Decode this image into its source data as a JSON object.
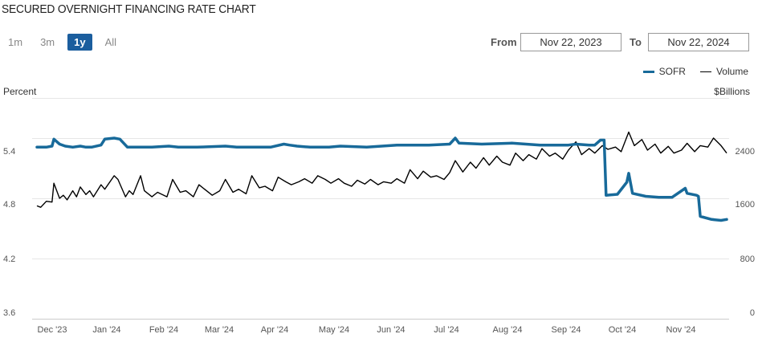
{
  "title": "SECURED OVERNIGHT FINANCING RATE CHART",
  "ranges": [
    {
      "label": "1m",
      "active": false
    },
    {
      "label": "3m",
      "active": false
    },
    {
      "label": "1y",
      "active": true
    },
    {
      "label": "All",
      "active": false
    }
  ],
  "date_range": {
    "from_label": "From",
    "from_value": "Nov 22, 2023",
    "to_label": "To",
    "to_value": "Nov 22, 2024"
  },
  "colors": {
    "sofr": "#186a9a",
    "volume": "#000000",
    "grid": "#e6e6e6"
  },
  "chart_data": {
    "type": "line",
    "x_ticks": [
      "Dec '23",
      "Jan '24",
      "Feb '24",
      "Mar '24",
      "Apr '24",
      "May '24",
      "Jun '24",
      "Jul '24",
      "Aug '24",
      "Sep '24",
      "Oct '24",
      "Nov '24"
    ],
    "y_left": {
      "title": "Percent",
      "ticks": [
        "5.4",
        "4.8",
        "4.2",
        "3.6"
      ],
      "range": [
        3.6,
        5.8
      ]
    },
    "y_right": {
      "title": "$Billions",
      "ticks": [
        "2400",
        "1600",
        "800",
        "0"
      ],
      "range": [
        0,
        2933
      ]
    },
    "legend": {
      "position": "top-right"
    },
    "grid": true,
    "series": [
      {
        "name": "SOFR",
        "axis": "left",
        "points": [
          [
            "2023-11-22",
            5.31
          ],
          [
            "2023-11-27",
            5.31
          ],
          [
            "2023-11-30",
            5.32
          ],
          [
            "2023-12-01",
            5.39
          ],
          [
            "2023-12-04",
            5.34
          ],
          [
            "2023-12-07",
            5.32
          ],
          [
            "2023-12-11",
            5.31
          ],
          [
            "2023-12-15",
            5.32
          ],
          [
            "2023-12-18",
            5.31
          ],
          [
            "2023-12-21",
            5.31
          ],
          [
            "2023-12-26",
            5.33
          ],
          [
            "2023-12-28",
            5.39
          ],
          [
            "2024-01-02",
            5.4
          ],
          [
            "2024-01-05",
            5.39
          ],
          [
            "2024-01-09",
            5.31
          ],
          [
            "2024-01-15",
            5.31
          ],
          [
            "2024-01-22",
            5.31
          ],
          [
            "2024-01-31",
            5.32
          ],
          [
            "2024-02-05",
            5.31
          ],
          [
            "2024-02-15",
            5.31
          ],
          [
            "2024-03-01",
            5.32
          ],
          [
            "2024-03-07",
            5.31
          ],
          [
            "2024-03-15",
            5.31
          ],
          [
            "2024-03-25",
            5.31
          ],
          [
            "2024-04-01",
            5.34
          ],
          [
            "2024-04-04",
            5.33
          ],
          [
            "2024-04-08",
            5.32
          ],
          [
            "2024-04-15",
            5.31
          ],
          [
            "2024-04-25",
            5.31
          ],
          [
            "2024-05-01",
            5.32
          ],
          [
            "2024-05-15",
            5.31
          ],
          [
            "2024-05-31",
            5.33
          ],
          [
            "2024-06-05",
            5.33
          ],
          [
            "2024-06-17",
            5.33
          ],
          [
            "2024-06-28",
            5.34
          ],
          [
            "2024-07-01",
            5.4
          ],
          [
            "2024-07-03",
            5.35
          ],
          [
            "2024-07-15",
            5.34
          ],
          [
            "2024-07-31",
            5.35
          ],
          [
            "2024-08-15",
            5.33
          ],
          [
            "2024-08-30",
            5.33
          ],
          [
            "2024-09-03",
            5.34
          ],
          [
            "2024-09-10",
            5.33
          ],
          [
            "2024-09-13",
            5.33
          ],
          [
            "2024-09-16",
            5.38
          ],
          [
            "2024-09-18",
            5.38
          ],
          [
            "2024-09-19",
            4.83
          ],
          [
            "2024-09-25",
            4.84
          ],
          [
            "2024-09-30",
            4.96
          ],
          [
            "2024-10-01",
            5.05
          ],
          [
            "2024-10-03",
            4.85
          ],
          [
            "2024-10-10",
            4.82
          ],
          [
            "2024-10-17",
            4.81
          ],
          [
            "2024-10-24",
            4.81
          ],
          [
            "2024-10-31",
            4.9
          ],
          [
            "2024-11-01",
            4.85
          ],
          [
            "2024-11-06",
            4.83
          ],
          [
            "2024-11-07",
            4.82
          ],
          [
            "2024-11-08",
            4.62
          ],
          [
            "2024-11-14",
            4.59
          ],
          [
            "2024-11-19",
            4.58
          ],
          [
            "2024-11-22",
            4.59
          ]
        ]
      },
      {
        "name": "Volume",
        "axis": "right",
        "points": [
          [
            "2023-11-22",
            1500
          ],
          [
            "2023-11-24",
            1480
          ],
          [
            "2023-11-27",
            1560
          ],
          [
            "2023-11-30",
            1550
          ],
          [
            "2023-12-01",
            1800
          ],
          [
            "2023-12-04",
            1600
          ],
          [
            "2023-12-06",
            1640
          ],
          [
            "2023-12-08",
            1580
          ],
          [
            "2023-12-11",
            1700
          ],
          [
            "2023-12-13",
            1620
          ],
          [
            "2023-12-15",
            1750
          ],
          [
            "2023-12-18",
            1650
          ],
          [
            "2023-12-20",
            1700
          ],
          [
            "2023-12-22",
            1620
          ],
          [
            "2023-12-26",
            1780
          ],
          [
            "2023-12-28",
            1720
          ],
          [
            "2024-01-02",
            1900
          ],
          [
            "2024-01-04",
            1850
          ],
          [
            "2024-01-08",
            1620
          ],
          [
            "2024-01-10",
            1700
          ],
          [
            "2024-01-12",
            1650
          ],
          [
            "2024-01-16",
            1900
          ],
          [
            "2024-01-18",
            1700
          ],
          [
            "2024-01-22",
            1620
          ],
          [
            "2024-01-25",
            1680
          ],
          [
            "2024-01-30",
            1620
          ],
          [
            "2024-02-02",
            1850
          ],
          [
            "2024-02-06",
            1680
          ],
          [
            "2024-02-09",
            1700
          ],
          [
            "2024-02-13",
            1620
          ],
          [
            "2024-02-16",
            1780
          ],
          [
            "2024-02-20",
            1700
          ],
          [
            "2024-02-23",
            1640
          ],
          [
            "2024-02-27",
            1700
          ],
          [
            "2024-03-01",
            1850
          ],
          [
            "2024-03-05",
            1680
          ],
          [
            "2024-03-08",
            1720
          ],
          [
            "2024-03-12",
            1660
          ],
          [
            "2024-03-15",
            1900
          ],
          [
            "2024-03-19",
            1740
          ],
          [
            "2024-03-22",
            1760
          ],
          [
            "2024-03-26",
            1700
          ],
          [
            "2024-03-29",
            1880
          ],
          [
            "2024-04-02",
            1820
          ],
          [
            "2024-04-05",
            1780
          ],
          [
            "2024-04-09",
            1820
          ],
          [
            "2024-04-12",
            1860
          ],
          [
            "2024-04-16",
            1800
          ],
          [
            "2024-04-19",
            1900
          ],
          [
            "2024-04-23",
            1850
          ],
          [
            "2024-04-26",
            1800
          ],
          [
            "2024-04-30",
            1860
          ],
          [
            "2024-05-03",
            1800
          ],
          [
            "2024-05-07",
            1760
          ],
          [
            "2024-05-10",
            1840
          ],
          [
            "2024-05-14",
            1790
          ],
          [
            "2024-05-17",
            1850
          ],
          [
            "2024-05-21",
            1780
          ],
          [
            "2024-05-24",
            1820
          ],
          [
            "2024-05-28",
            1800
          ],
          [
            "2024-05-31",
            1860
          ],
          [
            "2024-06-04",
            1800
          ],
          [
            "2024-06-07",
            1980
          ],
          [
            "2024-06-11",
            1860
          ],
          [
            "2024-06-14",
            1960
          ],
          [
            "2024-06-18",
            1880
          ],
          [
            "2024-06-21",
            1900
          ],
          [
            "2024-06-25",
            1850
          ],
          [
            "2024-06-28",
            1940
          ],
          [
            "2024-07-01",
            2100
          ],
          [
            "2024-07-05",
            1950
          ],
          [
            "2024-07-09",
            2080
          ],
          [
            "2024-07-12",
            2000
          ],
          [
            "2024-07-16",
            2140
          ],
          [
            "2024-07-19",
            2040
          ],
          [
            "2024-07-23",
            2160
          ],
          [
            "2024-07-26",
            2080
          ],
          [
            "2024-07-30",
            2040
          ],
          [
            "2024-08-02",
            2200
          ],
          [
            "2024-08-06",
            2100
          ],
          [
            "2024-08-09",
            2180
          ],
          [
            "2024-08-13",
            2120
          ],
          [
            "2024-08-16",
            2260
          ],
          [
            "2024-08-20",
            2160
          ],
          [
            "2024-08-23",
            2200
          ],
          [
            "2024-08-27",
            2120
          ],
          [
            "2024-08-30",
            2240
          ],
          [
            "2024-09-03",
            2350
          ],
          [
            "2024-09-06",
            2180
          ],
          [
            "2024-09-10",
            2260
          ],
          [
            "2024-09-13",
            2200
          ],
          [
            "2024-09-17",
            2300
          ],
          [
            "2024-09-20",
            2250
          ],
          [
            "2024-09-24",
            2280
          ],
          [
            "2024-09-27",
            2220
          ],
          [
            "2024-10-01",
            2480
          ],
          [
            "2024-10-04",
            2300
          ],
          [
            "2024-10-08",
            2380
          ],
          [
            "2024-10-11",
            2240
          ],
          [
            "2024-10-15",
            2320
          ],
          [
            "2024-10-18",
            2200
          ],
          [
            "2024-10-22",
            2290
          ],
          [
            "2024-10-25",
            2200
          ],
          [
            "2024-10-29",
            2240
          ],
          [
            "2024-11-01",
            2330
          ],
          [
            "2024-11-05",
            2220
          ],
          [
            "2024-11-08",
            2300
          ],
          [
            "2024-11-12",
            2280
          ],
          [
            "2024-11-15",
            2400
          ],
          [
            "2024-11-19",
            2300
          ],
          [
            "2024-11-22",
            2200
          ]
        ]
      }
    ]
  }
}
